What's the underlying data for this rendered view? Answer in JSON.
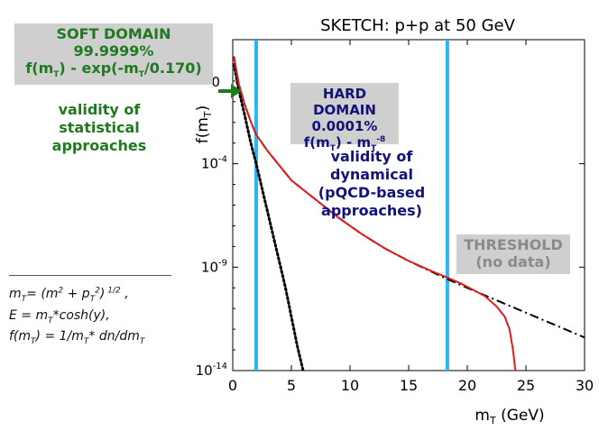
{
  "chart_data": {
    "type": "line",
    "title": "SKETCH: p+p at 50 GeV",
    "xlabel": "m_T (GeV)",
    "ylabel": "f(m_T)",
    "xlim": [
      0,
      30
    ],
    "ylim_log10": [
      -14,
      2
    ],
    "log_y": true,
    "x_ticks": [
      "0",
      "5",
      "10",
      "15",
      "20",
      "25",
      "30"
    ],
    "y_ticks": [
      {
        "label": "10-4",
        "log10": -4
      },
      {
        "label": "10-9",
        "log10": -9
      },
      {
        "label": "10-14",
        "log10": -14
      }
    ],
    "zero_label": "0",
    "vertical_lines": [
      2.0,
      18.3
    ],
    "series": [
      {
        "style": "dotted",
        "color": "#000000",
        "points": [
          [
            0.1,
            0.8
          ],
          [
            0.5,
            -0.4
          ],
          [
            1.0,
            -1.6
          ],
          [
            1.5,
            -2.9
          ],
          [
            2.0,
            -4.0
          ],
          [
            2.5,
            -5.2
          ],
          [
            3.0,
            -6.4
          ],
          [
            3.5,
            -7.6
          ],
          [
            4.0,
            -8.8
          ],
          [
            4.5,
            -10.0
          ],
          [
            5.0,
            -11.4
          ],
          [
            5.5,
            -12.8
          ],
          [
            6.0,
            -14.0
          ]
        ]
      },
      {
        "style": "dashdot",
        "color": "#000000",
        "points": [
          [
            0.1,
            1.2
          ],
          [
            0.5,
            -0.1
          ],
          [
            1.0,
            -1.1
          ],
          [
            1.5,
            -1.9
          ],
          [
            2.0,
            -2.6
          ],
          [
            3.0,
            -3.4
          ],
          [
            5.0,
            -4.8
          ],
          [
            7.0,
            -5.7
          ],
          [
            9.0,
            -6.6
          ],
          [
            11.0,
            -7.4
          ],
          [
            13.0,
            -8.1
          ],
          [
            15.0,
            -8.7
          ],
          [
            18.0,
            -9.5
          ],
          [
            20.0,
            -10.0
          ],
          [
            25.0,
            -11.2
          ],
          [
            30.0,
            -12.4
          ]
        ]
      },
      {
        "style": "solid",
        "color": "#e31a1c",
        "points": [
          [
            0.1,
            1.2
          ],
          [
            0.5,
            -0.1
          ],
          [
            1.0,
            -1.1
          ],
          [
            1.5,
            -1.9
          ],
          [
            2.0,
            -2.6
          ],
          [
            3.0,
            -3.4
          ],
          [
            5.0,
            -4.8
          ],
          [
            7.0,
            -5.7
          ],
          [
            9.0,
            -6.6
          ],
          [
            11.0,
            -7.4
          ],
          [
            13.0,
            -8.1
          ],
          [
            15.0,
            -8.7
          ],
          [
            17.0,
            -9.2
          ],
          [
            18.3,
            -9.5
          ],
          [
            19.5,
            -9.8
          ],
          [
            20.5,
            -10.1
          ],
          [
            21.5,
            -10.4
          ],
          [
            22.5,
            -10.9
          ],
          [
            23.2,
            -11.4
          ],
          [
            23.6,
            -12.0
          ],
          [
            23.9,
            -13.0
          ],
          [
            24.1,
            -14.0
          ]
        ]
      }
    ]
  },
  "soft_box": {
    "line1": "SOFT DOMAIN",
    "line2": "99.9999%",
    "fn_pre": "f(m",
    "fn_sub": "T",
    "fn_mid": ") - exp(-m",
    "fn_sub2": "T",
    "fn_post": "/0.170)"
  },
  "soft_validity": [
    "validity of",
    "statistical",
    "approaches"
  ],
  "hard_box": {
    "line1": "HARD DOMAIN",
    "line2": "0.0001%",
    "fn_pre": "f(m",
    "fn_sub": "T",
    "fn_mid": ") - m",
    "fn_sub2": "T",
    "fn_sup": "-8"
  },
  "hard_validity": [
    "validity of",
    "dynamical",
    "(pQCD-based",
    "approaches)"
  ],
  "threshold": {
    "line1": "THRESHOLD",
    "line2": "(no data)"
  },
  "definitions": {
    "l1_pre": "m",
    "l1_sub": "T",
    "l1_mid": "= (m",
    "l1_sup1": "2",
    "l1_mid2": " + p",
    "l1_sub2": "T",
    "l1_sup2": "2",
    "l1_post": ")",
    "l1_sup3": " 1/2",
    "l1_end": "  ,",
    "l2_pre": "E = m",
    "l2_sub": "T",
    "l2_post": "*cosh(y),",
    "l3_pre": "f(m",
    "l3_sub": "T",
    "l3_mid": ") = 1/m",
    "l3_sub2": "T",
    "l3_post": "* dn/dm",
    "l3_sub3": "T"
  },
  "colors": {
    "soft": "#1f7a1f",
    "hard": "#12127a",
    "threshold_text": "#8a8a8a",
    "box_bg": "#cfcfcf",
    "vline": "#29b6f6",
    "arrow": "#1f7a1f"
  }
}
